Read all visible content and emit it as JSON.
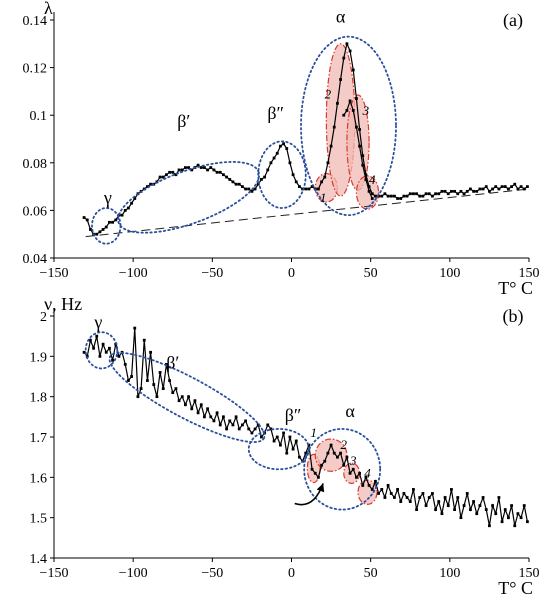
{
  "chart_data": [
    {
      "type": "line",
      "panel_label": "(a)",
      "ylabel": "λ",
      "xlabel": "T° C",
      "xlim": [
        -150,
        150
      ],
      "ylim": [
        0.04,
        0.14
      ],
      "xticks": [
        -150,
        -100,
        -50,
        0,
        50,
        100,
        150
      ],
      "yticks": [
        0.04,
        0.06,
        0.08,
        0.1,
        0.12,
        0.14
      ],
      "ytick_labels": [
        "0.04",
        "0.06",
        "0.08",
        "0.1",
        "0.12",
        "0.14"
      ],
      "baseline": {
        "x": [
          -130,
          150
        ],
        "y": [
          0.049,
          0.069
        ],
        "style": "dashed"
      },
      "series": [
        {
          "x": [
            -131,
            -129,
            -127,
            -125,
            -123,
            -121,
            -119,
            -117,
            -115,
            -113,
            -111,
            -109,
            -107,
            -105,
            -103,
            -101,
            -99,
            -97,
            -95,
            -93,
            -91,
            -89,
            -87,
            -85,
            -83,
            -81,
            -79,
            -77,
            -75,
            -73,
            -71,
            -69,
            -67,
            -65,
            -63,
            -61,
            -59,
            -57,
            -55,
            -53,
            -51,
            -49,
            -47,
            -45,
            -43,
            -41,
            -39,
            -37,
            -35,
            -33,
            -31,
            -29,
            -27,
            -25,
            -23,
            -21,
            -19,
            -17,
            -15,
            -13,
            -11,
            -9,
            -7,
            -5,
            -3,
            -1,
            1,
            3,
            5,
            7,
            9,
            11,
            13,
            15,
            17,
            19,
            21,
            23,
            25,
            27,
            29,
            31,
            33,
            35,
            37,
            39,
            41,
            43,
            45,
            47,
            49,
            51,
            53,
            55,
            57,
            59,
            61,
            63,
            65,
            67,
            69,
            71,
            73,
            75,
            77,
            79,
            81,
            83,
            85,
            87,
            89,
            91,
            93,
            95,
            97,
            99,
            101,
            103,
            105,
            107,
            109,
            111,
            113,
            115,
            117,
            119,
            121,
            123,
            125,
            127,
            129,
            131,
            133,
            135,
            137,
            139,
            141,
            143,
            145,
            147,
            149
          ],
          "y": [
            0.057,
            0.056,
            0.052,
            0.05,
            0.05,
            0.051,
            0.052,
            0.053,
            0.055,
            0.055,
            0.056,
            0.058,
            0.058,
            0.06,
            0.061,
            0.063,
            0.065,
            0.067,
            0.068,
            0.069,
            0.07,
            0.071,
            0.071,
            0.072,
            0.074,
            0.074,
            0.075,
            0.076,
            0.076,
            0.075,
            0.077,
            0.077,
            0.078,
            0.078,
            0.077,
            0.078,
            0.079,
            0.078,
            0.078,
            0.077,
            0.078,
            0.077,
            0.076,
            0.076,
            0.075,
            0.074,
            0.073,
            0.072,
            0.071,
            0.071,
            0.07,
            0.069,
            0.069,
            0.068,
            0.069,
            0.071,
            0.073,
            0.074,
            0.077,
            0.08,
            0.082,
            0.084,
            0.087,
            0.088,
            0.086,
            0.08,
            0.075,
            0.072,
            0.07,
            0.069,
            0.069,
            0.069,
            0.07,
            0.069,
            0.069,
            0.072,
            0.074,
            0.08,
            0.087,
            0.095,
            0.105,
            0.115,
            0.124,
            0.13,
            0.127,
            0.119,
            0.107,
            0.094,
            0.083,
            0.075,
            0.07,
            0.067,
            0.066,
            0.066,
            0.066,
            0.067,
            0.066,
            0.066,
            0.066,
            0.065,
            0.065,
            0.066,
            0.066,
            0.067,
            0.067,
            0.067,
            0.066,
            0.066,
            0.067,
            0.067,
            0.066,
            0.067,
            0.067,
            0.068,
            0.068,
            0.067,
            0.068,
            0.068,
            0.067,
            0.068,
            0.067,
            0.068,
            0.069,
            0.068,
            0.068,
            0.069,
            0.069,
            0.07,
            0.068,
            0.069,
            0.07,
            0.069,
            0.07,
            0.07,
            0.069,
            0.07,
            0.071,
            0.069,
            0.07,
            0.069,
            0.07
          ]
        },
        {
          "x": [
            33,
            35,
            37,
            39,
            41,
            43,
            45,
            47,
            49,
            51
          ],
          "y": [
            0.1,
            0.102,
            0.106,
            0.102,
            0.095,
            0.087,
            0.079,
            0.073,
            0.068,
            0.065
          ]
        }
      ],
      "annotations": [
        {
          "text": "γ",
          "x": -116,
          "y": 0.063
        },
        {
          "text": "β′",
          "x": -68,
          "y": 0.095
        },
        {
          "text": "β″",
          "x": -10,
          "y": 0.0985
        },
        {
          "text": "α",
          "x": 31,
          "y": 0.139
        },
        {
          "text": "1",
          "x": 20,
          "y": 0.0635
        },
        {
          "text": "2",
          "x": 23,
          "y": 0.107
        },
        {
          "text": "3",
          "x": 47,
          "y": 0.1
        },
        {
          "text": "4",
          "x": 51,
          "y": 0.071
        }
      ],
      "regions": [
        {
          "type": "ellipse",
          "label": "γ",
          "cx": -117,
          "cy": 0.0535,
          "rx": 9,
          "ry": 0.0075,
          "rot": 0,
          "style": "dotted"
        },
        {
          "type": "ellipse",
          "label": "β′",
          "cx": -65,
          "cy": 0.0655,
          "rx": 47,
          "ry": 0.011,
          "rot": -20,
          "style": "dotted"
        },
        {
          "type": "ellipse",
          "label": "β″",
          "cx": -6,
          "cy": 0.075,
          "rx": 15,
          "ry": 0.014,
          "rot": 0,
          "style": "dotted"
        },
        {
          "type": "ellipse",
          "label": "α",
          "cx": 36,
          "cy": 0.0955,
          "rx": 30,
          "ry": 0.0375,
          "rot": 0,
          "style": "dotted"
        },
        {
          "type": "ellipse",
          "label": "1",
          "cx": 22,
          "cy": 0.0695,
          "rx": 7,
          "ry": 0.006,
          "rot": 0,
          "style": "shaded"
        },
        {
          "type": "ellipse",
          "label": "2",
          "cx": 31,
          "cy": 0.098,
          "rx": 9,
          "ry": 0.032,
          "rot": 0,
          "style": "shaded"
        },
        {
          "type": "ellipse",
          "label": "3",
          "cx": 42,
          "cy": 0.0885,
          "rx": 7,
          "ry": 0.02,
          "rot": 0,
          "style": "shaded"
        },
        {
          "type": "ellipse",
          "label": "4",
          "cx": 48,
          "cy": 0.0675,
          "rx": 7,
          "ry": 0.007,
          "rot": 0,
          "style": "shaded"
        }
      ],
      "colors": {
        "line": "#000000",
        "dotted": "#2a4f9c",
        "shade_fill": "#f2b9b4",
        "shade_stroke": "#d83a2e"
      }
    },
    {
      "type": "line",
      "panel_label": "(b)",
      "ylabel": "ν, Hz",
      "xlabel": "T° C",
      "xlim": [
        -150,
        150
      ],
      "ylim": [
        1.4,
        2.0
      ],
      "xticks": [
        -150,
        -100,
        -50,
        0,
        50,
        100,
        150
      ],
      "yticks": [
        1.4,
        1.5,
        1.6,
        1.7,
        1.8,
        1.9,
        2.0
      ],
      "ytick_labels": [
        "1.4",
        "1.5",
        "1.6",
        "1.7",
        "1.8",
        "1.9",
        "2"
      ],
      "series": [
        {
          "x": [
            -131,
            -129,
            -127,
            -125,
            -123,
            -121,
            -119,
            -117,
            -115,
            -113,
            -111,
            -109,
            -107,
            -105,
            -103,
            -101,
            -99,
            -97,
            -95,
            -93,
            -91,
            -89,
            -87,
            -85,
            -83,
            -81,
            -79,
            -77,
            -75,
            -73,
            -71,
            -69,
            -67,
            -65,
            -63,
            -61,
            -59,
            -57,
            -55,
            -53,
            -51,
            -49,
            -47,
            -45,
            -43,
            -41,
            -39,
            -37,
            -35,
            -33,
            -31,
            -29,
            -27,
            -25,
            -23,
            -21,
            -19,
            -17,
            -15,
            -13,
            -11,
            -9,
            -7,
            -5,
            -3,
            -1,
            1,
            3,
            5,
            7,
            9,
            11,
            13,
            15,
            17,
            19,
            21,
            23,
            25,
            27,
            29,
            31,
            33,
            35,
            37,
            39,
            41,
            43,
            45,
            47,
            49,
            51,
            53,
            55,
            57,
            59,
            61,
            63,
            65,
            67,
            69,
            71,
            73,
            75,
            77,
            79,
            81,
            83,
            85,
            87,
            89,
            91,
            93,
            95,
            97,
            99,
            101,
            103,
            105,
            107,
            109,
            111,
            113,
            115,
            117,
            119,
            121,
            123,
            125,
            127,
            129,
            131,
            133,
            135,
            137,
            139,
            141,
            143,
            145,
            147,
            149
          ],
          "y": [
            1.91,
            1.9,
            1.94,
            1.92,
            1.95,
            1.9,
            1.93,
            1.91,
            1.92,
            1.89,
            1.93,
            1.9,
            1.91,
            1.88,
            1.84,
            1.85,
            1.97,
            1.8,
            1.82,
            1.94,
            1.84,
            1.91,
            1.83,
            1.8,
            1.86,
            1.82,
            1.88,
            1.84,
            1.81,
            1.82,
            1.79,
            1.8,
            1.78,
            1.8,
            1.77,
            1.79,
            1.76,
            1.78,
            1.75,
            1.77,
            1.75,
            1.74,
            1.76,
            1.73,
            1.75,
            1.72,
            1.74,
            1.73,
            1.75,
            1.72,
            1.73,
            1.74,
            1.72,
            1.71,
            1.72,
            1.73,
            1.7,
            1.71,
            1.73,
            1.72,
            1.69,
            1.7,
            1.68,
            1.71,
            1.66,
            1.7,
            1.67,
            1.69,
            1.65,
            1.64,
            1.66,
            1.68,
            1.62,
            1.61,
            1.6,
            1.63,
            1.64,
            1.66,
            1.68,
            1.66,
            1.65,
            1.66,
            1.63,
            1.65,
            1.61,
            1.62,
            1.6,
            1.61,
            1.58,
            1.6,
            1.58,
            1.57,
            1.59,
            1.56,
            1.57,
            1.55,
            1.58,
            1.56,
            1.55,
            1.57,
            1.54,
            1.56,
            1.55,
            1.54,
            1.57,
            1.52,
            1.55,
            1.56,
            1.53,
            1.55,
            1.56,
            1.52,
            1.54,
            1.51,
            1.55,
            1.53,
            1.57,
            1.52,
            1.55,
            1.5,
            1.53,
            1.56,
            1.52,
            1.54,
            1.51,
            1.53,
            1.55,
            1.52,
            1.48,
            1.53,
            1.51,
            1.55,
            1.49,
            1.52,
            1.5,
            1.53,
            1.48,
            1.51,
            1.5,
            1.53,
            1.49
          ]
        }
      ],
      "annotations": [
        {
          "text": "γ",
          "x": -122,
          "y": 1.97
        },
        {
          "text": "β′",
          "x": -75,
          "y": 1.87
        },
        {
          "text": "β″",
          "x": 1,
          "y": 1.74
        },
        {
          "text": "α",
          "x": 37,
          "y": 1.75
        },
        {
          "text": "1",
          "x": 14,
          "y": 1.7
        },
        {
          "text": "2",
          "x": 33,
          "y": 1.67
        },
        {
          "text": "3",
          "x": 39,
          "y": 1.63
        },
        {
          "text": "4",
          "x": 48,
          "y": 1.6
        }
      ],
      "regions": [
        {
          "type": "ellipse",
          "label": "γ",
          "cx": -120,
          "cy": 1.915,
          "rx": 10,
          "ry": 0.045,
          "rot": 0,
          "style": "dotted"
        },
        {
          "type": "ellipse",
          "label": "β′",
          "cx": -66,
          "cy": 1.798,
          "rx": 55,
          "ry": 0.05,
          "rot": 28,
          "style": "dotted"
        },
        {
          "type": "ellipse",
          "label": "β″",
          "cx": -8,
          "cy": 1.67,
          "rx": 19,
          "ry": 0.05,
          "rot": 0,
          "style": "dotted"
        },
        {
          "type": "ellipse",
          "label": "α",
          "cx": 32,
          "cy": 1.62,
          "rx": 24,
          "ry": 0.1,
          "rot": 0,
          "style": "dotted"
        },
        {
          "type": "ellipse",
          "label": "1",
          "cx": 14,
          "cy": 1.622,
          "rx": 4,
          "ry": 0.035,
          "rot": 0,
          "style": "shaded"
        },
        {
          "type": "ellipse",
          "label": "2",
          "cx": 25,
          "cy": 1.655,
          "rx": 10,
          "ry": 0.04,
          "rot": 0,
          "style": "shaded"
        },
        {
          "type": "ellipse",
          "label": "3",
          "cx": 38,
          "cy": 1.61,
          "rx": 5,
          "ry": 0.025,
          "rot": 0,
          "style": "shaded"
        },
        {
          "type": "ellipse",
          "label": "4",
          "cx": 48,
          "cy": 1.563,
          "rx": 6,
          "ry": 0.03,
          "rot": 0,
          "style": "shaded"
        }
      ],
      "arrow": {
        "from": [
          2,
          1.535
        ],
        "via": [
          14,
          1.52
        ],
        "to": [
          20,
          1.585
        ]
      },
      "colors": {
        "line": "#000000",
        "dotted": "#2a4f9c",
        "shade_fill": "#f2b9b4",
        "shade_stroke": "#d83a2e"
      }
    }
  ]
}
